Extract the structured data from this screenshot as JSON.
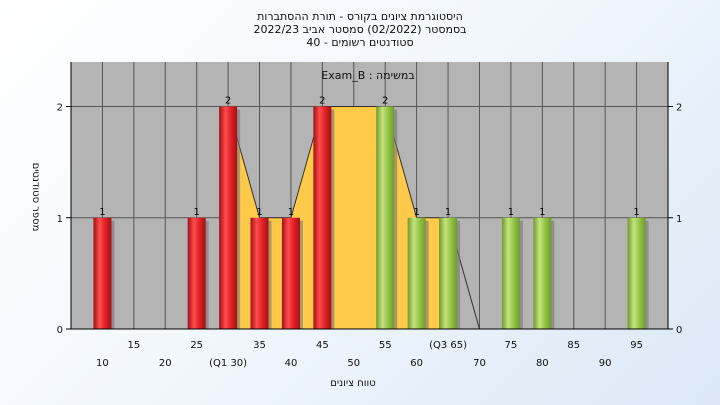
{
  "chart_data": {
    "type": "bar",
    "title_lines": [
      "היסטוגרמת ציונים בקורס - תורת ההסתברות",
      "2022/23 בסמסטר  (02/2022)  סמסטר אביב",
      "40 - סטודנטים רשומים"
    ],
    "inner_label": "Exam_B : במשימה",
    "xlabel": "טווח ציונים",
    "ylabel": "מספר סטודנטים",
    "xlim": [
      5,
      100
    ],
    "ylim": [
      0,
      2.4
    ],
    "y_ticks": [
      0,
      1,
      2
    ],
    "x_ticks_upper": [
      "15",
      "25",
      "35",
      "45",
      "55",
      "(Q3 65)",
      "75",
      "85",
      "95"
    ],
    "x_ticks_lower": [
      "10",
      "20",
      "(Q1 30)",
      "40",
      "50",
      "60",
      "70",
      "80",
      "90"
    ],
    "bins": [
      10,
      15,
      20,
      25,
      30,
      35,
      40,
      45,
      50,
      55,
      60,
      65,
      70,
      75,
      80,
      85,
      90,
      95
    ],
    "series": [
      {
        "name": "",
        "role": "histogram",
        "values": [
          1,
          0,
          0,
          1,
          2,
          1,
          1,
          2,
          0,
          2,
          1,
          1,
          0,
          1,
          1,
          0,
          0,
          1
        ]
      },
      {
        "name": "",
        "role": "interquartile-area",
        "points": [
          [
            30,
            2
          ],
          [
            35,
            1
          ],
          [
            40,
            1
          ],
          [
            45,
            2
          ],
          [
            55,
            2
          ],
          [
            60,
            1
          ],
          [
            65,
            1
          ]
        ]
      },
      {
        "name": "",
        "role": "frequency-line",
        "points": [
          [
            30,
            2
          ],
          [
            35,
            1
          ],
          [
            40,
            1
          ],
          [
            45,
            2
          ],
          [
            55,
            2
          ],
          [
            60,
            1
          ],
          [
            65,
            1
          ],
          [
            70,
            0
          ]
        ]
      }
    ],
    "quartiles": {
      "Q1": 30,
      "Q3": 65
    },
    "grid": true,
    "colors": {
      "plot_bg": "#b4b4b4",
      "grid": "#555555",
      "fail_bar": "#e8262b",
      "pass_bar": "#9ccb4e",
      "area": "#ffc94a",
      "line": "#333333"
    }
  }
}
